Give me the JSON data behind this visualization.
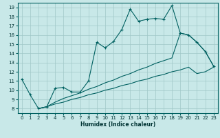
{
  "xlabel": "Humidex (Indice chaleur)",
  "bg_color": "#c8e8e8",
  "grid_color": "#a0c8c8",
  "line_color": "#006060",
  "xlim": [
    -0.5,
    23.5
  ],
  "ylim": [
    7.5,
    19.5
  ],
  "xticks": [
    0,
    1,
    2,
    3,
    4,
    5,
    6,
    7,
    8,
    9,
    10,
    11,
    12,
    13,
    14,
    15,
    16,
    17,
    18,
    19,
    20,
    21,
    22,
    23
  ],
  "yticks": [
    8,
    9,
    10,
    11,
    12,
    13,
    14,
    15,
    16,
    17,
    18,
    19
  ],
  "line1_x": [
    0,
    1,
    2,
    3,
    4,
    5,
    6,
    7,
    8,
    9,
    10,
    11,
    12,
    13,
    14,
    15,
    16,
    17,
    18,
    19,
    20,
    21,
    22,
    23
  ],
  "line1_y": [
    11.2,
    9.5,
    8.0,
    8.2,
    10.2,
    10.3,
    9.8,
    9.8,
    11.0,
    15.2,
    14.6,
    15.3,
    16.6,
    18.8,
    17.5,
    17.7,
    17.8,
    17.7,
    19.2,
    16.2,
    16.0,
    15.2,
    14.2,
    12.6
  ],
  "line2_x": [
    2,
    3,
    4,
    5,
    6,
    7,
    8,
    9,
    10,
    11,
    12,
    13,
    14,
    15,
    16,
    17,
    18,
    19,
    20,
    21,
    22,
    23
  ],
  "line2_y": [
    8.0,
    8.2,
    8.7,
    9.1,
    9.4,
    9.7,
    10.1,
    10.4,
    10.8,
    11.1,
    11.5,
    11.8,
    12.2,
    12.5,
    12.9,
    13.2,
    13.5,
    16.2,
    16.0,
    15.2,
    14.2,
    12.6
  ],
  "line3_x": [
    2,
    3,
    4,
    5,
    6,
    7,
    8,
    9,
    10,
    11,
    12,
    13,
    14,
    15,
    16,
    17,
    18,
    19,
    20,
    21,
    22,
    23
  ],
  "line3_y": [
    8.0,
    8.2,
    8.5,
    8.7,
    9.0,
    9.2,
    9.5,
    9.7,
    10.0,
    10.2,
    10.5,
    10.7,
    11.0,
    11.2,
    11.5,
    11.7,
    12.0,
    12.2,
    12.5,
    11.8,
    12.0,
    12.5
  ]
}
